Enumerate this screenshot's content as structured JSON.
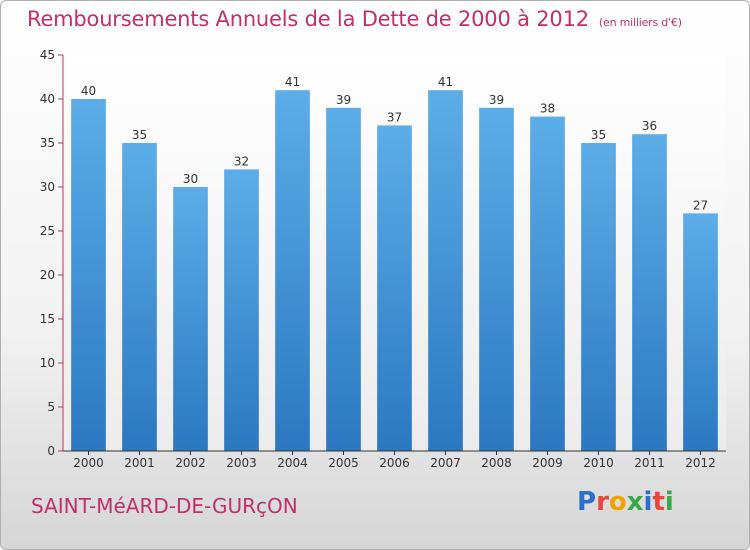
{
  "chart_data": {
    "type": "bar",
    "title": "Remboursements Annuels de la Dette de 2000 à 2012",
    "unit": "(en milliers d'€)",
    "categories": [
      "2000",
      "2001",
      "2002",
      "2003",
      "2004",
      "2005",
      "2006",
      "2007",
      "2008",
      "2009",
      "2010",
      "2011",
      "2012"
    ],
    "values": [
      40,
      35,
      30,
      32,
      41,
      39,
      37,
      41,
      39,
      38,
      35,
      36,
      27
    ],
    "ylim": [
      0,
      45
    ],
    "yticks": [
      0,
      5,
      10,
      15,
      20,
      25,
      30,
      35,
      40,
      45
    ],
    "grid": false,
    "bar_color": "#3a8fd6",
    "axis_color": "#c0306a"
  },
  "footer": {
    "commune": "SAINT-MéARD-DE-GURçON"
  },
  "logo": {
    "letters": [
      "P",
      "r",
      "o",
      "x",
      "i",
      "t",
      "i"
    ],
    "colors": [
      "#2a6fc9",
      "#e8463a",
      "#f2a200",
      "#3aa84a",
      "#2a6fc9",
      "#e8463a",
      "#3aa84a"
    ]
  }
}
